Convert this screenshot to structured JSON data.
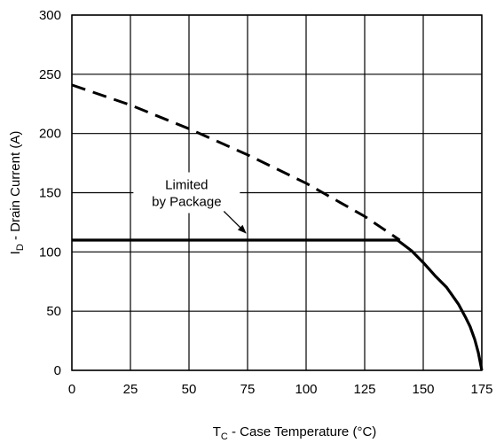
{
  "chart_data": {
    "type": "line",
    "title": "",
    "xlabel": {
      "main": "T",
      "sub": "C",
      "rest": " -  Case Temperature (°C)"
    },
    "ylabel": {
      "main": "I",
      "sub": "D",
      "rest": " -  Drain Current (A)"
    },
    "xlim": [
      0,
      175
    ],
    "ylim": [
      0,
      300
    ],
    "xticks": [
      0,
      25,
      50,
      75,
      100,
      125,
      150,
      175
    ],
    "yticks": [
      0,
      50,
      100,
      150,
      200,
      250,
      300
    ],
    "grid": true,
    "colors": {
      "line": "#000000",
      "grid": "#000000",
      "background": "#ffffff"
    },
    "series": [
      {
        "style": "dashed",
        "x": [
          0,
          25,
          50,
          75,
          100,
          125,
          140
        ],
        "y": [
          241,
          224,
          204,
          182,
          158,
          130,
          110
        ]
      },
      {
        "style": "solid-thick",
        "x": [
          0,
          139
        ],
        "y": [
          110,
          110
        ]
      },
      {
        "style": "solid-thick",
        "x": [
          139,
          145,
          150,
          155,
          160,
          165,
          168,
          170,
          172,
          173.5,
          175
        ],
        "y": [
          110,
          101,
          91,
          80,
          70,
          56,
          45,
          37,
          26,
          15,
          0
        ]
      }
    ],
    "annotations": [
      {
        "lines": [
          "Limited",
          "by Package"
        ],
        "text_at": [
          49,
          150
        ],
        "arrow_to": [
          75,
          110
        ]
      }
    ]
  }
}
